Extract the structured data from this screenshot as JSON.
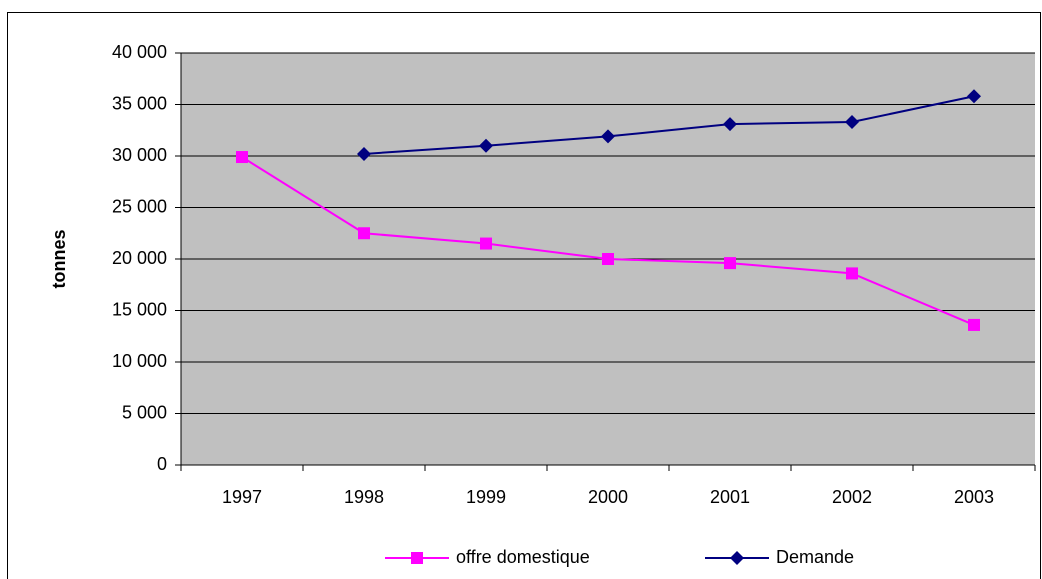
{
  "chart_data": {
    "type": "line",
    "y_label": "tonnes",
    "categories": [
      "1997",
      "1998",
      "1999",
      "2000",
      "2001",
      "2002",
      "2003"
    ],
    "series": [
      {
        "name": "offre domestique",
        "color": "#ff00ff",
        "marker": "square",
        "values": [
          29900,
          22500,
          21500,
          20000,
          19600,
          18600,
          13600
        ]
      },
      {
        "name": "Demande",
        "color": "#000080",
        "marker": "diamond",
        "values": [
          null,
          30200,
          31000,
          31900,
          33100,
          33300,
          35800
        ]
      }
    ],
    "ylim": [
      0,
      40000
    ],
    "yticks": [
      {
        "value": 0,
        "label": "0"
      },
      {
        "value": 5000,
        "label": "5 000"
      },
      {
        "value": 10000,
        "label": "10 000"
      },
      {
        "value": 15000,
        "label": "15 000"
      },
      {
        "value": 20000,
        "label": "20 000"
      },
      {
        "value": 25000,
        "label": "25 000"
      },
      {
        "value": 30000,
        "label": "30 000"
      },
      {
        "value": 35000,
        "label": "35 000"
      },
      {
        "value": 40000,
        "label": "40 000"
      }
    ],
    "grid": true,
    "plot_background": "#c0c0c0",
    "legend": "bottom"
  }
}
